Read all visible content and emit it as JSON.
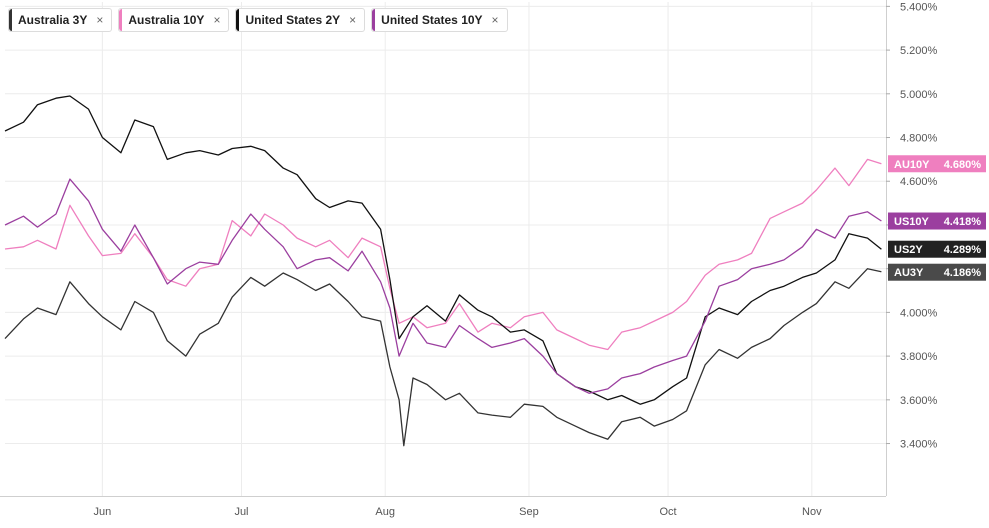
{
  "legend": [
    {
      "label": "Australia 3Y",
      "color": "#333333"
    },
    {
      "label": "Australia 10Y",
      "color": "#ef7fbf"
    },
    {
      "label": "United States 2Y",
      "color": "#111111"
    },
    {
      "label": "United States 10Y",
      "color": "#9b3f9f"
    }
  ],
  "close_glyph": "×",
  "chart_data": {
    "type": "line",
    "x_axis": {
      "range": [
        "2023-05-11",
        "2023-11-17"
      ],
      "ticks": [
        {
          "label": "Jun",
          "date": "2023-06-01"
        },
        {
          "label": "Jul",
          "date": "2023-07-01"
        },
        {
          "label": "Aug",
          "date": "2023-08-01"
        },
        {
          "label": "Sep",
          "date": "2023-09-01"
        },
        {
          "label": "Oct",
          "date": "2023-10-01"
        },
        {
          "label": "Nov",
          "date": "2023-11-01"
        }
      ]
    },
    "y_axis": {
      "ylim": [
        3.16,
        5.42
      ],
      "ticks": [
        "5.400%",
        "5.200%",
        "5.000%",
        "4.800%",
        "4.600%",
        "4.400%",
        "4.200%",
        "4.000%",
        "3.800%",
        "3.600%",
        "3.400%"
      ],
      "tick_values": [
        5.4,
        5.2,
        5.0,
        4.8,
        4.6,
        4.4,
        4.2,
        4.0,
        3.8,
        3.6,
        3.4
      ],
      "position": "right"
    },
    "grid": true,
    "legend_placement": "top-left",
    "series": [
      {
        "name": "Australia 3Y",
        "color": "#333333",
        "points": [
          [
            "2023-05-11",
            3.88
          ],
          [
            "2023-05-15",
            3.97
          ],
          [
            "2023-05-18",
            4.02
          ],
          [
            "2023-05-22",
            3.99
          ],
          [
            "2023-05-25",
            4.14
          ],
          [
            "2023-05-29",
            4.04
          ],
          [
            "2023-06-01",
            3.98
          ],
          [
            "2023-06-05",
            3.92
          ],
          [
            "2023-06-08",
            4.05
          ],
          [
            "2023-06-12",
            4.0
          ],
          [
            "2023-06-15",
            3.87
          ],
          [
            "2023-06-19",
            3.8
          ],
          [
            "2023-06-22",
            3.9
          ],
          [
            "2023-06-26",
            3.95
          ],
          [
            "2023-06-29",
            4.07
          ],
          [
            "2023-07-03",
            4.16
          ],
          [
            "2023-07-06",
            4.12
          ],
          [
            "2023-07-10",
            4.18
          ],
          [
            "2023-07-13",
            4.15
          ],
          [
            "2023-07-17",
            4.1
          ],
          [
            "2023-07-20",
            4.13
          ],
          [
            "2023-07-24",
            4.05
          ],
          [
            "2023-07-27",
            3.98
          ],
          [
            "2023-07-31",
            3.96
          ],
          [
            "2023-08-02",
            3.75
          ],
          [
            "2023-08-04",
            3.6
          ],
          [
            "2023-08-05",
            3.39
          ],
          [
            "2023-08-07",
            3.7
          ],
          [
            "2023-08-10",
            3.67
          ],
          [
            "2023-08-14",
            3.6
          ],
          [
            "2023-08-17",
            3.63
          ],
          [
            "2023-08-21",
            3.54
          ],
          [
            "2023-08-24",
            3.53
          ],
          [
            "2023-08-28",
            3.52
          ],
          [
            "2023-08-31",
            3.58
          ],
          [
            "2023-09-04",
            3.57
          ],
          [
            "2023-09-07",
            3.52
          ],
          [
            "2023-09-11",
            3.48
          ],
          [
            "2023-09-14",
            3.45
          ],
          [
            "2023-09-18",
            3.42
          ],
          [
            "2023-09-21",
            3.5
          ],
          [
            "2023-09-25",
            3.52
          ],
          [
            "2023-09-28",
            3.48
          ],
          [
            "2023-10-02",
            3.51
          ],
          [
            "2023-10-05",
            3.55
          ],
          [
            "2023-10-09",
            3.76
          ],
          [
            "2023-10-12",
            3.83
          ],
          [
            "2023-10-16",
            3.79
          ],
          [
            "2023-10-19",
            3.84
          ],
          [
            "2023-10-23",
            3.88
          ],
          [
            "2023-10-26",
            3.94
          ],
          [
            "2023-10-30",
            4.0
          ],
          [
            "2023-11-02",
            4.04
          ],
          [
            "2023-11-06",
            4.14
          ],
          [
            "2023-11-09",
            4.11
          ],
          [
            "2023-11-13",
            4.2
          ],
          [
            "2023-11-16",
            4.186
          ]
        ]
      },
      {
        "name": "Australia 10Y",
        "color": "#ef7fbf",
        "points": [
          [
            "2023-05-11",
            4.29
          ],
          [
            "2023-05-15",
            4.3
          ],
          [
            "2023-05-18",
            4.33
          ],
          [
            "2023-05-22",
            4.29
          ],
          [
            "2023-05-25",
            4.49
          ],
          [
            "2023-05-29",
            4.35
          ],
          [
            "2023-06-01",
            4.26
          ],
          [
            "2023-06-05",
            4.27
          ],
          [
            "2023-06-08",
            4.36
          ],
          [
            "2023-06-12",
            4.25
          ],
          [
            "2023-06-15",
            4.15
          ],
          [
            "2023-06-19",
            4.12
          ],
          [
            "2023-06-22",
            4.2
          ],
          [
            "2023-06-26",
            4.22
          ],
          [
            "2023-06-29",
            4.42
          ],
          [
            "2023-07-03",
            4.35
          ],
          [
            "2023-07-06",
            4.45
          ],
          [
            "2023-07-10",
            4.4
          ],
          [
            "2023-07-13",
            4.34
          ],
          [
            "2023-07-17",
            4.3
          ],
          [
            "2023-07-20",
            4.33
          ],
          [
            "2023-07-24",
            4.25
          ],
          [
            "2023-07-27",
            4.34
          ],
          [
            "2023-07-31",
            4.3
          ],
          [
            "2023-08-02",
            4.11
          ],
          [
            "2023-08-04",
            3.95
          ],
          [
            "2023-08-07",
            3.98
          ],
          [
            "2023-08-10",
            3.93
          ],
          [
            "2023-08-14",
            3.95
          ],
          [
            "2023-08-17",
            4.04
          ],
          [
            "2023-08-21",
            3.91
          ],
          [
            "2023-08-24",
            3.95
          ],
          [
            "2023-08-28",
            3.93
          ],
          [
            "2023-08-31",
            3.98
          ],
          [
            "2023-09-04",
            4.0
          ],
          [
            "2023-09-07",
            3.92
          ],
          [
            "2023-09-11",
            3.88
          ],
          [
            "2023-09-14",
            3.85
          ],
          [
            "2023-09-18",
            3.83
          ],
          [
            "2023-09-21",
            3.91
          ],
          [
            "2023-09-25",
            3.93
          ],
          [
            "2023-09-28",
            3.96
          ],
          [
            "2023-10-02",
            4.0
          ],
          [
            "2023-10-05",
            4.05
          ],
          [
            "2023-10-09",
            4.17
          ],
          [
            "2023-10-12",
            4.22
          ],
          [
            "2023-10-16",
            4.24
          ],
          [
            "2023-10-19",
            4.27
          ],
          [
            "2023-10-23",
            4.43
          ],
          [
            "2023-10-26",
            4.46
          ],
          [
            "2023-10-30",
            4.5
          ],
          [
            "2023-11-02",
            4.56
          ],
          [
            "2023-11-06",
            4.66
          ],
          [
            "2023-11-09",
            4.58
          ],
          [
            "2023-11-13",
            4.7
          ],
          [
            "2023-11-16",
            4.68
          ]
        ]
      },
      {
        "name": "United States 2Y",
        "color": "#111111",
        "points": [
          [
            "2023-05-11",
            4.83
          ],
          [
            "2023-05-15",
            4.87
          ],
          [
            "2023-05-18",
            4.95
          ],
          [
            "2023-05-22",
            4.98
          ],
          [
            "2023-05-25",
            4.99
          ],
          [
            "2023-05-29",
            4.93
          ],
          [
            "2023-06-01",
            4.8
          ],
          [
            "2023-06-05",
            4.73
          ],
          [
            "2023-06-08",
            4.88
          ],
          [
            "2023-06-12",
            4.85
          ],
          [
            "2023-06-15",
            4.7
          ],
          [
            "2023-06-19",
            4.73
          ],
          [
            "2023-06-22",
            4.74
          ],
          [
            "2023-06-26",
            4.72
          ],
          [
            "2023-06-29",
            4.75
          ],
          [
            "2023-07-03",
            4.76
          ],
          [
            "2023-07-06",
            4.74
          ],
          [
            "2023-07-10",
            4.66
          ],
          [
            "2023-07-13",
            4.63
          ],
          [
            "2023-07-17",
            4.52
          ],
          [
            "2023-07-20",
            4.48
          ],
          [
            "2023-07-24",
            4.51
          ],
          [
            "2023-07-27",
            4.5
          ],
          [
            "2023-07-31",
            4.38
          ],
          [
            "2023-08-02",
            4.15
          ],
          [
            "2023-08-04",
            3.88
          ],
          [
            "2023-08-07",
            3.98
          ],
          [
            "2023-08-10",
            4.03
          ],
          [
            "2023-08-14",
            3.96
          ],
          [
            "2023-08-17",
            4.08
          ],
          [
            "2023-08-21",
            4.01
          ],
          [
            "2023-08-24",
            3.98
          ],
          [
            "2023-08-28",
            3.91
          ],
          [
            "2023-08-31",
            3.92
          ],
          [
            "2023-09-04",
            3.87
          ],
          [
            "2023-09-07",
            3.72
          ],
          [
            "2023-09-11",
            3.66
          ],
          [
            "2023-09-14",
            3.64
          ],
          [
            "2023-09-18",
            3.6
          ],
          [
            "2023-09-21",
            3.62
          ],
          [
            "2023-09-25",
            3.58
          ],
          [
            "2023-09-28",
            3.6
          ],
          [
            "2023-10-02",
            3.66
          ],
          [
            "2023-10-05",
            3.7
          ],
          [
            "2023-10-09",
            3.98
          ],
          [
            "2023-10-12",
            4.02
          ],
          [
            "2023-10-16",
            3.99
          ],
          [
            "2023-10-19",
            4.05
          ],
          [
            "2023-10-23",
            4.1
          ],
          [
            "2023-10-26",
            4.12
          ],
          [
            "2023-10-30",
            4.16
          ],
          [
            "2023-11-02",
            4.18
          ],
          [
            "2023-11-06",
            4.24
          ],
          [
            "2023-11-09",
            4.36
          ],
          [
            "2023-11-13",
            4.34
          ],
          [
            "2023-11-16",
            4.289
          ]
        ]
      },
      {
        "name": "United States 10Y",
        "color": "#9b3f9f",
        "points": [
          [
            "2023-05-11",
            4.4
          ],
          [
            "2023-05-15",
            4.44
          ],
          [
            "2023-05-18",
            4.39
          ],
          [
            "2023-05-22",
            4.45
          ],
          [
            "2023-05-25",
            4.61
          ],
          [
            "2023-05-29",
            4.51
          ],
          [
            "2023-06-01",
            4.38
          ],
          [
            "2023-06-05",
            4.28
          ],
          [
            "2023-06-08",
            4.4
          ],
          [
            "2023-06-12",
            4.25
          ],
          [
            "2023-06-15",
            4.13
          ],
          [
            "2023-06-19",
            4.2
          ],
          [
            "2023-06-22",
            4.23
          ],
          [
            "2023-06-26",
            4.22
          ],
          [
            "2023-06-29",
            4.33
          ],
          [
            "2023-07-03",
            4.45
          ],
          [
            "2023-07-06",
            4.38
          ],
          [
            "2023-07-10",
            4.3
          ],
          [
            "2023-07-13",
            4.2
          ],
          [
            "2023-07-17",
            4.24
          ],
          [
            "2023-07-20",
            4.25
          ],
          [
            "2023-07-24",
            4.19
          ],
          [
            "2023-07-27",
            4.28
          ],
          [
            "2023-07-31",
            4.14
          ],
          [
            "2023-08-02",
            4.02
          ],
          [
            "2023-08-04",
            3.8
          ],
          [
            "2023-08-07",
            3.95
          ],
          [
            "2023-08-10",
            3.86
          ],
          [
            "2023-08-14",
            3.84
          ],
          [
            "2023-08-17",
            3.94
          ],
          [
            "2023-08-21",
            3.88
          ],
          [
            "2023-08-24",
            3.84
          ],
          [
            "2023-08-28",
            3.86
          ],
          [
            "2023-08-31",
            3.88
          ],
          [
            "2023-09-04",
            3.8
          ],
          [
            "2023-09-07",
            3.72
          ],
          [
            "2023-09-11",
            3.66
          ],
          [
            "2023-09-14",
            3.63
          ],
          [
            "2023-09-18",
            3.65
          ],
          [
            "2023-09-21",
            3.7
          ],
          [
            "2023-09-25",
            3.72
          ],
          [
            "2023-09-28",
            3.75
          ],
          [
            "2023-10-02",
            3.78
          ],
          [
            "2023-10-05",
            3.8
          ],
          [
            "2023-10-09",
            3.96
          ],
          [
            "2023-10-12",
            4.12
          ],
          [
            "2023-10-16",
            4.15
          ],
          [
            "2023-10-19",
            4.2
          ],
          [
            "2023-10-23",
            4.22
          ],
          [
            "2023-10-26",
            4.24
          ],
          [
            "2023-10-30",
            4.3
          ],
          [
            "2023-11-02",
            4.38
          ],
          [
            "2023-11-06",
            4.34
          ],
          [
            "2023-11-09",
            4.44
          ],
          [
            "2023-11-13",
            4.46
          ],
          [
            "2023-11-16",
            4.418
          ]
        ]
      }
    ],
    "end_labels": [
      {
        "ticker": "AU10Y",
        "value": "4.680%",
        "y": 4.68,
        "color": "#ef7fbf"
      },
      {
        "ticker": "US10Y",
        "value": "4.418%",
        "y": 4.418,
        "color": "#9b3f9f"
      },
      {
        "ticker": "US2Y",
        "value": "4.289%",
        "y": 4.289,
        "color": "#222222"
      },
      {
        "ticker": "AU3Y",
        "value": "4.186%",
        "y": 4.186,
        "color": "#4a4a4a"
      }
    ]
  }
}
